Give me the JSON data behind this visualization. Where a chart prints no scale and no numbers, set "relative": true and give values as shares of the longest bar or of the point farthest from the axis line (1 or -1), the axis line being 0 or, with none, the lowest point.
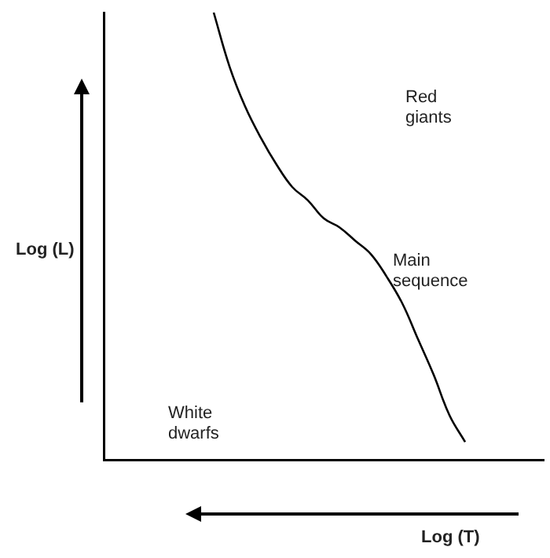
{
  "chart_data": {
    "type": "line",
    "relative": true,
    "xlabel": "Log (T)",
    "ylabel": "Log (L)",
    "annotations": [
      "Red giants",
      "Main sequence",
      "White dwarfs"
    ],
    "categories": [
      null,
      null,
      null,
      null,
      null,
      null,
      null,
      null,
      null,
      null,
      null,
      null,
      null,
      null,
      null,
      null,
      null,
      null,
      null,
      null,
      null,
      null,
      null,
      null,
      null,
      null,
      null,
      null,
      null
    ],
    "series": [
      {
        "color": "#000000",
        "values": [
          null,
          null,
          null,
          null,
          null,
          null,
          null,
          1.0,
          0.88,
          0.79,
          0.72,
          0.66,
          0.61,
          0.58,
          0.54,
          0.52,
          0.49,
          0.46,
          0.41,
          0.35,
          0.27,
          0.19,
          0.1,
          0.04,
          null,
          null,
          null,
          null,
          null
        ]
      }
    ],
    "grid": false,
    "legend": false,
    "marker": "none",
    "line_style": "solid"
  }
}
